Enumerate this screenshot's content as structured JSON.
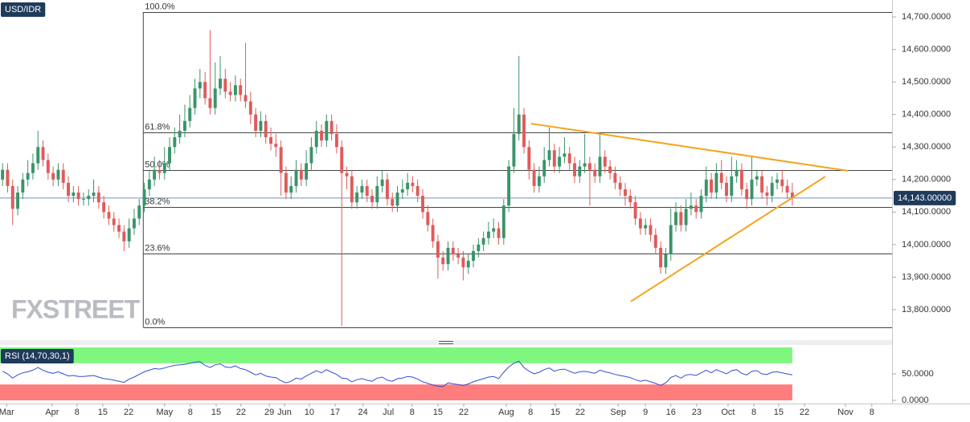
{
  "chart_data": [
    {
      "type": "candlestick",
      "title": "USD/IDR",
      "up_color": "#3a9469",
      "down_color": "#e05a5a",
      "open": [
        14200,
        14230,
        14180,
        14110,
        14160,
        14200,
        14220,
        14250,
        14300,
        14260,
        14220,
        14200,
        14230,
        14190,
        14150,
        14160,
        14140,
        14140,
        14150,
        14160,
        14130,
        14100,
        14080,
        14060,
        14040,
        14010,
        14050,
        14080,
        14120,
        14170,
        14200,
        14230,
        14220,
        14250,
        14300,
        14330,
        14350,
        14380,
        14420,
        14480,
        14500,
        14450,
        14420,
        14480,
        14510,
        14470,
        14460,
        14490,
        14460,
        14440,
        14400,
        14350,
        14380,
        14330,
        14310,
        14300,
        14220,
        14160,
        14180,
        14230,
        14200,
        14250,
        14300,
        14350,
        14320,
        14380,
        14340,
        14300,
        14220,
        14210,
        14130,
        14160,
        14180,
        14150,
        14130,
        14180,
        14200,
        14140,
        14120,
        14160,
        14170,
        14190,
        14180,
        14150,
        14100,
        14060,
        14010,
        13960,
        13940,
        13990,
        13970,
        13960,
        13930,
        13950,
        13980,
        14000,
        14020,
        14040,
        14050,
        14020,
        14120,
        14240,
        14340,
        14400,
        14300,
        14230,
        14180,
        14210,
        14260,
        14290,
        14240,
        14270,
        14280,
        14250,
        14210,
        14240,
        14250,
        14230,
        14210,
        14270,
        14240,
        14220,
        14190,
        14170,
        14150,
        14130,
        14080,
        14050,
        14060,
        14030,
        13990,
        13930,
        13970,
        14060,
        14100,
        14060,
        14110,
        14120,
        14100,
        14150,
        14200,
        14160,
        14220,
        14190,
        14150,
        14210,
        14230,
        14170,
        14140,
        14200,
        14210,
        14160,
        14150,
        14190,
        14200,
        14180,
        14160
      ],
      "high": [
        14250,
        14250,
        14200,
        14180,
        14220,
        14260,
        14280,
        14350,
        14320,
        14280,
        14240,
        14250,
        14250,
        14210,
        14180,
        14180,
        14160,
        14170,
        14200,
        14180,
        14150,
        14120,
        14100,
        14080,
        14060,
        14080,
        14110,
        14140,
        14190,
        14230,
        14270,
        14260,
        14300,
        14330,
        14360,
        14400,
        14430,
        14460,
        14510,
        14540,
        14530,
        14660,
        14560,
        14580,
        14540,
        14500,
        14520,
        14510,
        14620,
        14470,
        14420,
        14410,
        14400,
        14360,
        14340,
        14320,
        14240,
        14210,
        14260,
        14250,
        14290,
        14330,
        14380,
        14370,
        14400,
        14400,
        14370,
        14320,
        14240,
        14230,
        14180,
        14200,
        14200,
        14170,
        14210,
        14230,
        14220,
        14160,
        14180,
        14200,
        14220,
        14210,
        14200,
        14170,
        14120,
        14080,
        14030,
        13980,
        14010,
        14010,
        13990,
        13980,
        13970,
        14000,
        14020,
        14040,
        14070,
        14080,
        14070,
        14140,
        14260,
        14420,
        14580,
        14420,
        14320,
        14250,
        14240,
        14300,
        14360,
        14310,
        14300,
        14330,
        14300,
        14270,
        14260,
        14340,
        14270,
        14250,
        14340,
        14290,
        14260,
        14240,
        14210,
        14190,
        14170,
        14150,
        14100,
        14080,
        14080,
        14050,
        14010,
        13990,
        14110,
        14130,
        14120,
        14140,
        14160,
        14140,
        14170,
        14240,
        14220,
        14250,
        14260,
        14210,
        14270,
        14260,
        14250,
        14190,
        14270,
        14230,
        14230,
        14180,
        14210,
        14220,
        14230,
        14200,
        14190
      ],
      "low": [
        14180,
        14160,
        14060,
        14090,
        14140,
        14180,
        14200,
        14230,
        14240,
        14200,
        14180,
        14180,
        14170,
        14130,
        14130,
        14120,
        14120,
        14120,
        14130,
        14110,
        14080,
        14060,
        14040,
        14020,
        13980,
        13990,
        14030,
        14060,
        14100,
        14150,
        14180,
        14200,
        14200,
        14230,
        14280,
        14310,
        14330,
        14360,
        14400,
        14450,
        14430,
        14400,
        14400,
        14460,
        14450,
        14440,
        14440,
        14440,
        14420,
        14370,
        14330,
        14330,
        14310,
        14290,
        14270,
        14150,
        14140,
        14140,
        14160,
        14180,
        14180,
        14230,
        14280,
        14300,
        14300,
        14320,
        14280,
        13750,
        14170,
        14110,
        14110,
        14140,
        14130,
        14110,
        14110,
        14160,
        14120,
        14100,
        14100,
        14140,
        14150,
        14160,
        14130,
        14080,
        14040,
        13990,
        13895,
        13920,
        13920,
        13950,
        13940,
        13890,
        13910,
        13930,
        13960,
        13980,
        14000,
        14020,
        14000,
        14000,
        14100,
        14220,
        14320,
        14280,
        14200,
        14160,
        14160,
        14190,
        14240,
        14220,
        14220,
        14250,
        14230,
        14190,
        14190,
        14220,
        14120,
        14190,
        14190,
        14220,
        14200,
        14170,
        14150,
        14120,
        14110,
        14060,
        14030,
        14030,
        14010,
        13970,
        13910,
        13910,
        13950,
        14040,
        14040,
        14040,
        14090,
        14080,
        14080,
        14130,
        14140,
        14140,
        14170,
        14130,
        14130,
        14190,
        14150,
        14110,
        14120,
        14180,
        14140,
        14120,
        14130,
        14170,
        14160,
        14140,
        14120
      ],
      "close": [
        14230,
        14180,
        14110,
        14160,
        14200,
        14220,
        14250,
        14300,
        14260,
        14220,
        14200,
        14230,
        14190,
        14150,
        14160,
        14140,
        14140,
        14150,
        14160,
        14130,
        14100,
        14080,
        14060,
        14040,
        14010,
        14050,
        14080,
        14120,
        14170,
        14200,
        14230,
        14220,
        14250,
        14300,
        14330,
        14350,
        14380,
        14420,
        14480,
        14500,
        14450,
        14420,
        14480,
        14510,
        14470,
        14460,
        14490,
        14460,
        14440,
        14400,
        14350,
        14380,
        14330,
        14310,
        14300,
        14220,
        14160,
        14180,
        14230,
        14200,
        14250,
        14300,
        14350,
        14320,
        14380,
        14340,
        14300,
        14220,
        14210,
        14130,
        14160,
        14180,
        14150,
        14130,
        14180,
        14200,
        14140,
        14120,
        14160,
        14170,
        14190,
        14180,
        14150,
        14100,
        14060,
        14010,
        13960,
        13940,
        13990,
        13970,
        13960,
        13930,
        13950,
        13980,
        14000,
        14020,
        14040,
        14050,
        14020,
        14120,
        14240,
        14340,
        14400,
        14300,
        14230,
        14180,
        14210,
        14260,
        14290,
        14240,
        14270,
        14280,
        14250,
        14210,
        14240,
        14250,
        14230,
        14210,
        14270,
        14240,
        14220,
        14190,
        14170,
        14150,
        14130,
        14080,
        14050,
        14060,
        14030,
        13990,
        13930,
        13970,
        14060,
        14100,
        14060,
        14110,
        14120,
        14100,
        14150,
        14200,
        14160,
        14220,
        14190,
        14150,
        14210,
        14230,
        14170,
        14140,
        14200,
        14210,
        14160,
        14150,
        14190,
        14200,
        14180,
        14160,
        14143
      ],
      "xlim": [
        -0.5,
        175.7
      ],
      "xticks": [
        {
          "value": 0.8,
          "label": "Mar"
        },
        {
          "value": 9.8,
          "label": "Apr"
        },
        {
          "value": 14.7,
          "label": "8"
        },
        {
          "value": 19.8,
          "label": "15"
        },
        {
          "value": 24.9,
          "label": "22"
        },
        {
          "value": 32,
          "label": "May"
        },
        {
          "value": 37.1,
          "label": "8"
        },
        {
          "value": 42.2,
          "label": "15"
        },
        {
          "value": 47.1,
          "label": "22"
        },
        {
          "value": 52.7,
          "label": "29"
        },
        {
          "value": 55.7,
          "label": "Jun"
        },
        {
          "value": 60.6,
          "label": "10"
        },
        {
          "value": 65.7,
          "label": "17"
        },
        {
          "value": 71.2,
          "label": "24"
        },
        {
          "value": 76.2,
          "label": "Jul"
        },
        {
          "value": 80.9,
          "label": "8"
        },
        {
          "value": 86,
          "label": "15"
        },
        {
          "value": 91.1,
          "label": "22"
        },
        {
          "value": 99.5,
          "label": "Aug"
        },
        {
          "value": 104.3,
          "label": "8"
        },
        {
          "value": 109.2,
          "label": "15"
        },
        {
          "value": 114.1,
          "label": "22"
        },
        {
          "value": 121.6,
          "label": "Sep"
        },
        {
          "value": 127,
          "label": "9"
        },
        {
          "value": 132,
          "label": "16"
        },
        {
          "value": 137.1,
          "label": "23"
        },
        {
          "value": 143.3,
          "label": "Oct"
        },
        {
          "value": 148.4,
          "label": "8"
        },
        {
          "value": 153.3,
          "label": "15"
        },
        {
          "value": 158.4,
          "label": "22"
        },
        {
          "value": 166.5,
          "label": "Nov"
        },
        {
          "value": 171.7,
          "label": "8"
        }
      ],
      "ylim": [
        13716,
        14752
      ],
      "yticks": [
        {
          "value": 13800,
          "label": "13,800.0000"
        },
        {
          "value": 13900,
          "label": "13,900.0000"
        },
        {
          "value": 14000,
          "label": "14,000.0000"
        },
        {
          "value": 14100,
          "label": "14,100.0000"
        },
        {
          "value": 14200,
          "label": "14,200.0000"
        },
        {
          "value": 14300,
          "label": "14,300.0000"
        },
        {
          "value": 14400,
          "label": "14,400.0000"
        },
        {
          "value": 14500,
          "label": "14,500.0000"
        },
        {
          "value": 14600,
          "label": "14,600.0000"
        },
        {
          "value": 14700,
          "label": "14,700.0000"
        }
      ],
      "fib_x": 27.8,
      "fib_levels": [
        {
          "value": 14715,
          "label": "100.0%"
        },
        {
          "value": 14345,
          "label": "61.8%"
        },
        {
          "value": 14229,
          "label": "50.0%"
        },
        {
          "value": 14116,
          "label": "38.2%"
        },
        {
          "value": 13973,
          "label": "23.6%"
        },
        {
          "value": 13746,
          "label": "0.0%"
        }
      ],
      "trendline_color": "#f5a31a",
      "trendlines": [
        [
          [
            104.4,
            14372
          ],
          [
            167,
            14227
          ]
        ],
        [
          [
            124.1,
            13825
          ],
          [
            162.5,
            14209
          ]
        ]
      ],
      "last_price": {
        "value": 14143,
        "label": "14,143.00000"
      },
      "watermark": "FXSTREET"
    },
    {
      "type": "line",
      "title": "RSI (14,70,30,1)",
      "color": "#3050d0",
      "values": [
        55,
        50,
        42,
        48,
        52,
        54,
        57,
        62,
        57,
        53,
        51,
        54,
        50,
        46,
        47,
        45,
        45,
        46,
        47,
        44,
        41,
        40,
        38,
        36,
        34,
        40,
        44,
        49,
        54,
        57,
        60,
        59,
        61,
        64,
        66,
        67,
        68,
        70,
        72,
        73,
        66,
        62,
        67,
        69,
        63,
        62,
        65,
        60,
        58,
        53,
        48,
        51,
        46,
        44,
        43,
        37,
        33,
        36,
        42,
        40,
        46,
        51,
        56,
        52,
        58,
        53,
        49,
        42,
        41,
        35,
        39,
        41,
        38,
        36,
        42,
        44,
        38,
        36,
        41,
        42,
        45,
        44,
        40,
        35,
        32,
        29,
        27,
        26,
        33,
        31,
        30,
        28,
        31,
        35,
        38,
        41,
        44,
        45,
        41,
        53,
        63,
        70,
        74,
        62,
        55,
        50,
        53,
        58,
        61,
        55,
        58,
        59,
        55,
        51,
        54,
        55,
        53,
        51,
        57,
        54,
        52,
        49,
        47,
        45,
        43,
        39,
        36,
        38,
        35,
        32,
        28,
        33,
        43,
        47,
        42,
        48,
        49,
        47,
        52,
        57,
        52,
        58,
        54,
        50,
        56,
        58,
        51,
        48,
        55,
        56,
        50,
        49,
        53,
        54,
        52,
        50,
        48
      ],
      "ylim": [
        0,
        100
      ],
      "yticks": [
        {
          "value": 0,
          "label": "0.0000"
        },
        {
          "value": 50,
          "label": "50.0000"
        }
      ],
      "levels": [
        30,
        70
      ],
      "upper_band_color": "#7ef77e",
      "lower_band_color": "#ff7d7d"
    }
  ]
}
